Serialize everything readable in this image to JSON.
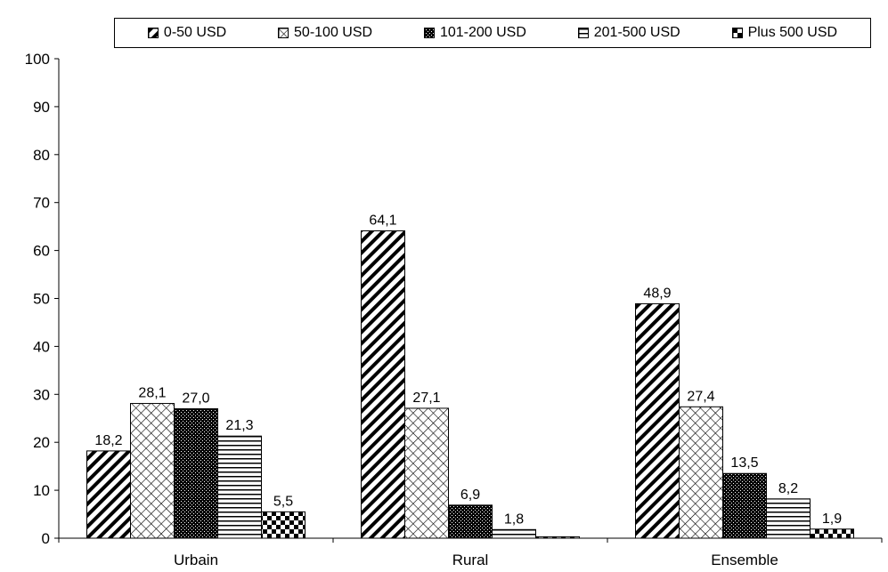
{
  "chart_data": {
    "type": "bar",
    "categories": [
      "Urbain",
      "Rural",
      "Ensemble"
    ],
    "series": [
      {
        "name": "0-50 USD",
        "values": [
          18.2,
          64.1,
          48.9
        ],
        "labels": [
          "18,2",
          "64,1",
          "48,9"
        ],
        "pattern": "diagonal"
      },
      {
        "name": "50-100 USD",
        "values": [
          28.1,
          27.1,
          27.4
        ],
        "labels": [
          "28,1",
          "27,1",
          "27,4"
        ],
        "pattern": "crosshatch"
      },
      {
        "name": "101-200 USD",
        "values": [
          27.0,
          6.9,
          13.5
        ],
        "labels": [
          "27,0",
          "6,9",
          "13,5"
        ],
        "pattern": "dark-dots"
      },
      {
        "name": "201-500 USD",
        "values": [
          21.3,
          1.8,
          8.2
        ],
        "labels": [
          "21,3",
          "1,8",
          "8,2"
        ],
        "pattern": "horizontal"
      },
      {
        "name": "Plus 500 USD",
        "values": [
          5.5,
          0.3,
          1.9
        ],
        "labels": [
          "5,5",
          "",
          "1,9"
        ],
        "pattern": "checker"
      }
    ],
    "y_ticks": [
      "0",
      "10",
      "20",
      "30",
      "40",
      "50",
      "60",
      "70",
      "80",
      "90",
      "100"
    ],
    "ylim": [
      0,
      100
    ],
    "legend_position": "top",
    "grid": false
  }
}
